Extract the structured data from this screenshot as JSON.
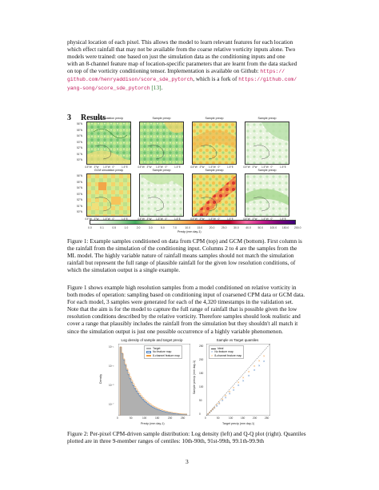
{
  "intro_paragraph": {
    "line1": "physical location of each pixel. This allows the model to learn relevant features for each location",
    "line2": "which effect rainfall that may not be available from the coarse relative vorticity inputs alone. Two",
    "line3": "models were trained: one based on just the simulation data as the conditioning inputs and one",
    "line4": "with an 8-channel feature map of location-specific parameters that are learnt from the data stacked",
    "line5": "on top of the vorticity conditioning tensor. Implementation is available on Github:",
    "link1a": "https://",
    "link1b": "github.com/henryaddison/score_sde_pytorch",
    "line6_mid": ", which is a fork of",
    "link2a": "https://github.com/",
    "link2b": "yang-song/score_sde_pytorch",
    "cite1": "[13]",
    "line7_end": "."
  },
  "section": {
    "number": "3",
    "title": "Results"
  },
  "figure1": {
    "row_titles_top": [
      "CPM simulation precip",
      "Sample precip",
      "Sample precip",
      "Sample precip"
    ],
    "row_titles_bottom": [
      "GCM simulation precip",
      "Sample precip",
      "Sample precip",
      "Sample precip"
    ],
    "lat_ticks": [
      "56°N",
      "55°N",
      "54°N",
      "53°N",
      "52°N",
      "51°N",
      "50°N"
    ],
    "lon_ticks": [
      "4.5°W",
      "3°W",
      "1.5°W",
      "0°",
      "1.5°E"
    ],
    "colorbar_ticks": [
      "0.0",
      "0.1",
      "0.5",
      "1.0",
      "2.0",
      "3.0",
      "5.0",
      "7.0",
      "10.0",
      "15.0",
      "20.0",
      "25.0",
      "30.0",
      "40.0",
      "50.0",
      "100.0",
      "150.0",
      "200.0"
    ],
    "colorbar_label": "Precip (mm day-1)",
    "caption": {
      "label": "Figure 1:",
      "line1": "Example samples conditioned on data from CPM (top) and GCM (bottom). First column is",
      "line2": "the rainfall from the simulation of the conditioning input. Columns 2 to 4 are the samples from the",
      "line3": "ML model. The highly variable nature of rainfall means samples should not match the simulation",
      "line4": "rainfall but represent the full range of plausible rainfall for the given low resolution conditions, of",
      "line5": "which the simulation output is a single example."
    }
  },
  "body_paragraph": {
    "lines": [
      "Figure 1 shows example high resolution samples from a model conditioned on relative vorticity in",
      "both modes of operation: sampling based on conditioning input of coarsened CPM data or GCM data.",
      "For each model, 3 samples were generated for each of the 4,320 timestamps in the validation set.",
      "Note that the aim is for the model to capture the full range of rainfall that is possible given the low",
      "resolution conditions described by the relative vorticity. Therefore samples should look realistic and",
      "cover a range that plausibly includes the rainfall from the simulation but they shouldn't all match it",
      "since the simulation output is just one possible occurrence of a highly variable phenomenon."
    ]
  },
  "figure2": {
    "left_title": "Log density of sample and target precip",
    "left_xlabel": "Precip (mm day-1)",
    "left_ylabel": "Density",
    "left_legend": [
      "Target",
      "No feature map",
      "8-channel feature map"
    ],
    "left_xticks": [
      "0",
      "50",
      "100",
      "150",
      "200",
      "250"
    ],
    "left_yticks": [
      "10⁻¹",
      "10⁻³",
      "10⁻⁵",
      "10⁻⁷"
    ],
    "right_title": "Sample vs Target quantiles",
    "right_xlabel": "Target precip (mm day-1)",
    "right_ylabel": "Sample precip (mm day-1)",
    "right_legend": [
      "Ideal",
      "No feature map",
      "8-channel feature map"
    ],
    "right_ticks": [
      "0",
      "50",
      "100",
      "150",
      "200",
      "250"
    ],
    "caption": {
      "label": "Figure 2:",
      "line1": "Per-pixel CPM-driven sample distribution: Log density (left) and Q-Q plot (right). Quantiles",
      "line2": "plotted are in three 9-member ranges of centiles: 10th-90th, 91st-99th, 99.1th-99.9th"
    }
  },
  "page_number": "3",
  "colors": {
    "link": "#c2185b",
    "cite": "#2e7d32",
    "target": "#b0b0b0",
    "no_feature": "#4a7fc1",
    "feature8": "#f39c3d"
  }
}
